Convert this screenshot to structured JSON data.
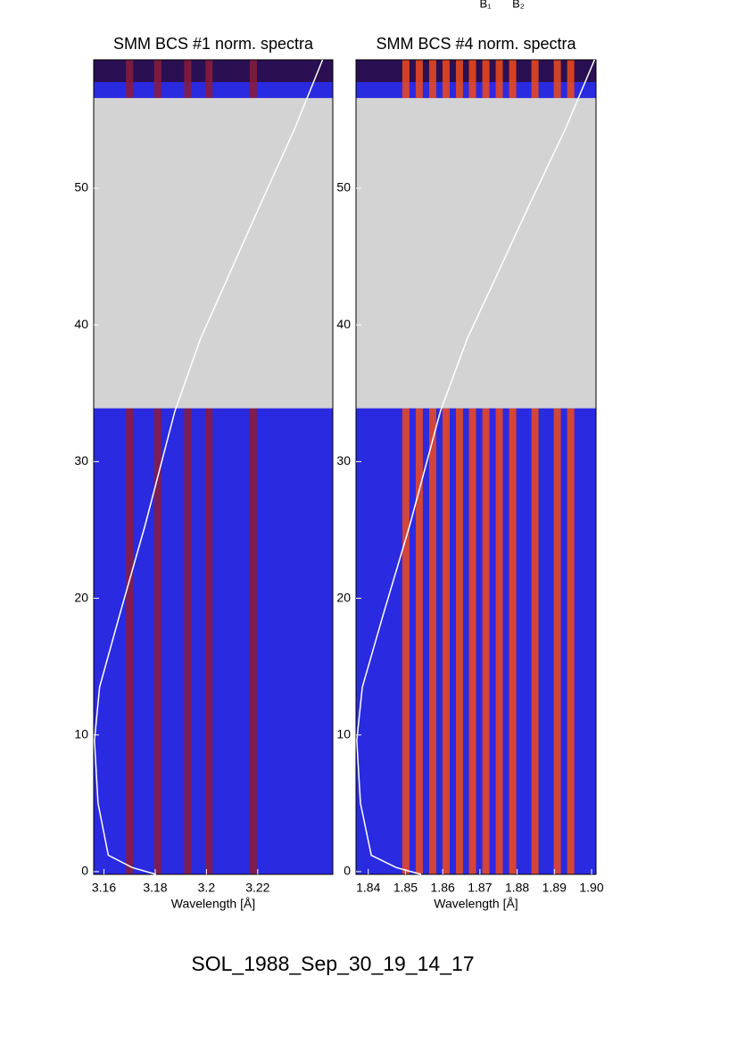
{
  "annotations": [
    "B₁",
    "B₂"
  ],
  "footer": "SOL_1988_Sep_30_19_14_17",
  "chart_data": [
    {
      "type": "spectrogram",
      "title": "SMM BCS #1 norm. spectra",
      "xlabel": "Wavelength [Å]",
      "xlim": [
        3.156,
        3.2493
      ],
      "xticks": [
        3.16,
        3.18,
        3.2,
        3.22
      ],
      "ylim": [
        -0.2,
        59.4
      ],
      "yticks": [
        0,
        10,
        20,
        30,
        40,
        50
      ],
      "no_data": [
        33.9,
        56.6
      ],
      "background": "#2a2ae0",
      "gap_color": "#d3d3d3",
      "line_color": "#8b1c3a",
      "emission_lines": [
        3.17,
        3.181,
        3.1927,
        3.201,
        3.2183
      ],
      "curve": {
        "color": "#ffffff",
        "x": [
          3.1803,
          3.171,
          3.1617,
          3.1577,
          3.1563,
          3.1583,
          3.166,
          3.176,
          3.1877,
          3.1977,
          3.2077,
          3.221,
          3.2343,
          3.2453
        ],
        "y": [
          -0.2,
          0.3,
          1.2,
          5.0,
          9.6,
          13.5,
          18.7,
          25.3,
          33.7,
          39.0,
          43.2,
          48.8,
          54.3,
          59.4
        ]
      }
    },
    {
      "type": "spectrogram",
      "title": "SMM BCS #4 norm. spectra",
      "xlabel": "Wavelength [Å]",
      "xlim": [
        1.8367,
        1.9012
      ],
      "xticks": [
        1.84,
        1.85,
        1.86,
        1.87,
        1.88,
        1.89,
        {
          "value": 1.9,
          "label": "1.90"
        }
      ],
      "ylim": [
        -0.2,
        59.4
      ],
      "yticks": [
        0,
        10,
        20,
        30,
        40,
        50
      ],
      "no_data": [
        33.9,
        56.6
      ],
      "background": "#2a2ae0",
      "gap_color": "#d3d3d3",
      "line_color": "#f04a1a",
      "emission_lines": [
        1.8501,
        1.8537,
        1.8573,
        1.8609,
        1.8645,
        1.868,
        1.8716,
        1.8752,
        1.8788,
        1.8848,
        1.8908,
        1.8944
      ],
      "curve": {
        "color": "#ffffff",
        "x": [
          1.8542,
          1.8475,
          1.8408,
          1.8379,
          1.8369,
          1.8384,
          1.8439,
          1.8511,
          1.8594,
          1.8666,
          1.8738,
          1.8833,
          1.8929,
          1.9008
        ],
        "y": [
          -0.2,
          0.3,
          1.2,
          5.0,
          9.6,
          13.5,
          18.7,
          25.3,
          33.7,
          39.0,
          43.2,
          48.8,
          54.3,
          59.4
        ]
      }
    }
  ]
}
